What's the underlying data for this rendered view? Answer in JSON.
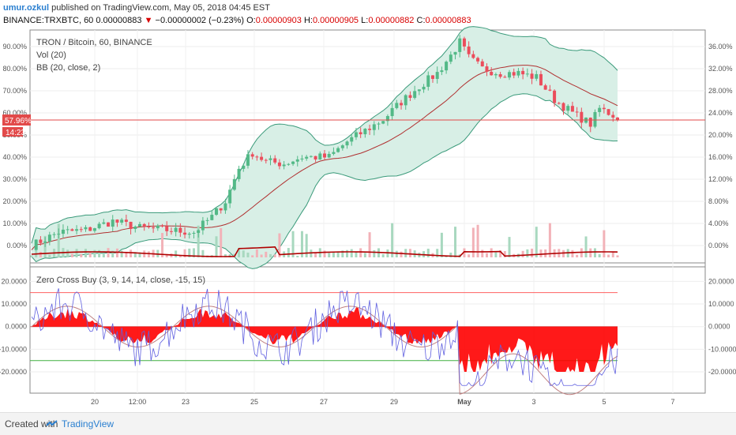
{
  "header": {
    "user": "umur.ozkul",
    "published_text": "published on TradingView.com, May 05, 2018 04:45 EST",
    "symbol": "BINANCE:TRXBTC, 60",
    "last": "0.00000883",
    "arrow": "▼",
    "change": "−0.00000002 (−0.23%)",
    "o_label": "O:",
    "o": "0.00000903",
    "h_label": "H:",
    "h": "0.00000905",
    "l_label": "L:",
    "l": "0.00000882",
    "c_label": "C:",
    "c": "0.00000883"
  },
  "legend": {
    "title": "TRON / Bitcoin, 60, BINANCE",
    "vol": "Vol (20)",
    "bb": "BB (20, close, 2)",
    "osc": "Zero Cross Buy (3, 9, 14, 14, close, -15, 15)"
  },
  "price_badges": {
    "pct": "57.96%",
    "time": "14:23"
  },
  "footer": {
    "created": "Created with",
    "brand": "TradingView"
  },
  "colors": {
    "up": "#53b987",
    "down": "#eb4d5c",
    "bb_fill": "#d8efe6",
    "bb_line": "#3a9a7a",
    "basis": "#b03030",
    "vol_ma": "#b00000",
    "hist": "#ff0000",
    "osc_line": "#6060e0",
    "signal": "#c08080",
    "upper_level": "#ff6060",
    "lower_level": "#40b040",
    "price_line": "#e24a4a"
  },
  "chart_data": [
    {
      "type": "candlestick",
      "title": "TRON / Bitcoin, 60, BINANCE",
      "left_axis_ticks": [
        "90.00%",
        "80.00%",
        "70.00%",
        "60.00%",
        "50.00%",
        "40.00%",
        "30.00%",
        "20.00%",
        "10.00%",
        "0.00%"
      ],
      "right_axis_ticks": [
        "36.00%",
        "32.00%",
        "28.00%",
        "24.00%",
        "20.00%",
        "16.00%",
        "12.00%",
        "8.00%",
        "4.00%",
        "0.00%"
      ],
      "x_ticks": [
        "20",
        "12:00",
        "23",
        "25",
        "27",
        "29",
        "May",
        "3",
        "5",
        "7"
      ],
      "close_path_pct": [
        [
          0,
          0.0
        ],
        [
          6,
          6.0
        ],
        [
          12,
          7.0
        ],
        [
          18,
          11.0
        ],
        [
          24,
          8.0
        ],
        [
          30,
          7.0
        ],
        [
          36,
          6.0
        ],
        [
          40,
          13.0
        ],
        [
          43,
          20.0
        ],
        [
          46,
          35.0
        ],
        [
          49,
          42.0
        ],
        [
          52,
          38.0
        ],
        [
          56,
          37.0
        ],
        [
          60,
          40.0
        ],
        [
          66,
          40.0
        ],
        [
          70,
          47.0
        ],
        [
          74,
          52.0
        ],
        [
          78,
          57.0
        ],
        [
          82,
          65.0
        ],
        [
          86,
          72.0
        ],
        [
          90,
          78.0
        ],
        [
          93,
          86.0
        ],
        [
          95,
          92.0
        ],
        [
          97,
          85.0
        ],
        [
          100,
          80.0
        ],
        [
          104,
          78.0
        ],
        [
          108,
          78.0
        ],
        [
          112,
          76.0
        ],
        [
          116,
          66.0
        ],
        [
          120,
          60.0
        ],
        [
          124,
          55.0
        ],
        [
          126,
          62.0
        ],
        [
          128,
          60.0
        ],
        [
          130,
          58.0
        ]
      ],
      "y_range_pct": [
        -5,
        95
      ]
    },
    {
      "type": "volume",
      "name": "Vol (20)"
    },
    {
      "type": "oscillator",
      "name": "Zero Cross Buy (3, 9, 14, 14, close, -15, 15)",
      "y_ticks": [
        "20.0000",
        "10.0000",
        "0.0000",
        "-10.0000",
        "-20.0000"
      ],
      "levels": [
        15,
        -15
      ],
      "y_range": [
        -28,
        25
      ]
    }
  ]
}
